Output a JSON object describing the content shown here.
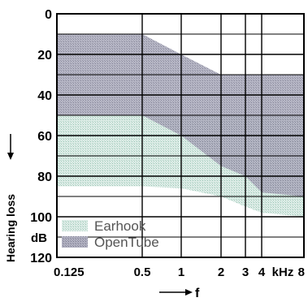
{
  "chart_data": {
    "type": "area",
    "x_unit_label": "kHz",
    "x_arrow_label": "f",
    "y_axis_label": "Hearing loss",
    "y_unit_label": "dB",
    "x_ticks": [
      {
        "value": 0.125,
        "label": "0.125"
      },
      {
        "value": 0.5,
        "label": "0.5"
      },
      {
        "value": 1,
        "label": "1"
      },
      {
        "value": 2,
        "label": "2"
      },
      {
        "value": 3,
        "label": "3"
      },
      {
        "value": 4,
        "label": "4"
      },
      {
        "value": 8,
        "label": "8"
      }
    ],
    "x_scale": "log",
    "xlim": [
      0.125,
      8
    ],
    "y_ticks": [
      {
        "value": 0,
        "label": "0"
      },
      {
        "value": 20,
        "label": "20"
      },
      {
        "value": 40,
        "label": "40"
      },
      {
        "value": 60,
        "label": "60"
      },
      {
        "value": 80,
        "label": "80"
      },
      {
        "value": 100,
        "label": "100"
      },
      {
        "value": 120,
        "label": "120"
      }
    ],
    "ylim": [
      0,
      120
    ],
    "y_inverted": true,
    "grid": true,
    "legend_position": "bottom-left",
    "series": [
      {
        "name": "Earhook",
        "color": "#d6e8e1",
        "upper": [
          {
            "x": 0.125,
            "y": 50
          },
          {
            "x": 0.5,
            "y": 50
          },
          {
            "x": 1,
            "y": 50
          },
          {
            "x": 2,
            "y": 50
          },
          {
            "x": 3,
            "y": 50
          },
          {
            "x": 4,
            "y": 50
          },
          {
            "x": 8,
            "y": 50
          }
        ],
        "lower": [
          {
            "x": 0.125,
            "y": 85
          },
          {
            "x": 0.5,
            "y": 85
          },
          {
            "x": 1,
            "y": 86
          },
          {
            "x": 2,
            "y": 90
          },
          {
            "x": 3,
            "y": 95
          },
          {
            "x": 4,
            "y": 98
          },
          {
            "x": 8,
            "y": 100
          }
        ]
      },
      {
        "name": "OpenTube",
        "color": "#a8a8b8",
        "upper": [
          {
            "x": 0.125,
            "y": 10
          },
          {
            "x": 0.5,
            "y": 10
          },
          {
            "x": 1,
            "y": 20
          },
          {
            "x": 2,
            "y": 30
          },
          {
            "x": 3,
            "y": 30
          },
          {
            "x": 4,
            "y": 30
          },
          {
            "x": 8,
            "y": 30
          }
        ],
        "lower": [
          {
            "x": 0.125,
            "y": 50
          },
          {
            "x": 0.5,
            "y": 50
          },
          {
            "x": 1,
            "y": 60
          },
          {
            "x": 2,
            "y": 75
          },
          {
            "x": 3,
            "y": 80
          },
          {
            "x": 4,
            "y": 88
          },
          {
            "x": 8,
            "y": 90
          }
        ]
      }
    ]
  }
}
